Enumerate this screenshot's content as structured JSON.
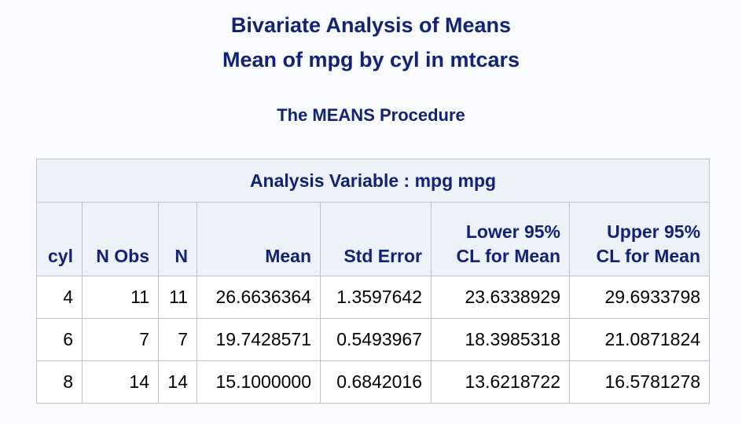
{
  "titles": {
    "line1": "Bivariate Analysis of Means",
    "line2": "Mean of mpg by cyl in mtcars"
  },
  "procedure": "The MEANS Procedure",
  "table": {
    "caption": "Analysis Variable : mpg mpg",
    "headers": {
      "cyl": "cyl",
      "nobs": "N Obs",
      "n": "N",
      "mean": "Mean",
      "stderr": "Std Error",
      "lclm": [
        "Lower 95%",
        "CL for Mean"
      ],
      "uclm": [
        "Upper 95%",
        "CL for Mean"
      ]
    },
    "rows": [
      {
        "cyl": "4",
        "nobs": "11",
        "n": "11",
        "mean": "26.6636364",
        "stderr": "1.3597642",
        "lclm": "23.6338929",
        "uclm": "29.6933798"
      },
      {
        "cyl": "6",
        "nobs": "7",
        "n": "7",
        "mean": "19.7428571",
        "stderr": "0.5493967",
        "lclm": "18.3985318",
        "uclm": "21.0871824"
      },
      {
        "cyl": "8",
        "nobs": "14",
        "n": "14",
        "mean": "15.1000000",
        "stderr": "0.6842016",
        "lclm": "13.6218722",
        "uclm": "16.5781278"
      }
    ]
  }
}
